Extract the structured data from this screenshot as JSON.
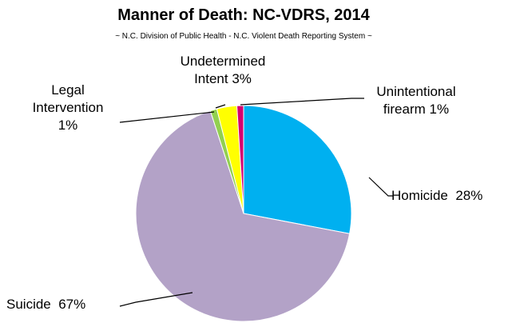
{
  "chart_data": {
    "type": "pie",
    "title": "Manner of Death: NC-VDRS, 2014",
    "subtitle": "~ N.C. Division of Public Health - N.C. Violent Death Reporting System ~",
    "categories": [
      "Homicide",
      "Suicide",
      "Legal Intervention",
      "Undetermined Intent",
      "Unintentional firearm"
    ],
    "values": [
      28,
      67,
      1,
      3,
      1
    ],
    "value_labels": [
      "28%",
      "67%",
      "1%",
      "3%",
      "1%"
    ],
    "colors": [
      "#00b0f0",
      "#b3a2c7",
      "#92d050",
      "#ffff00",
      "#d6006f"
    ]
  }
}
